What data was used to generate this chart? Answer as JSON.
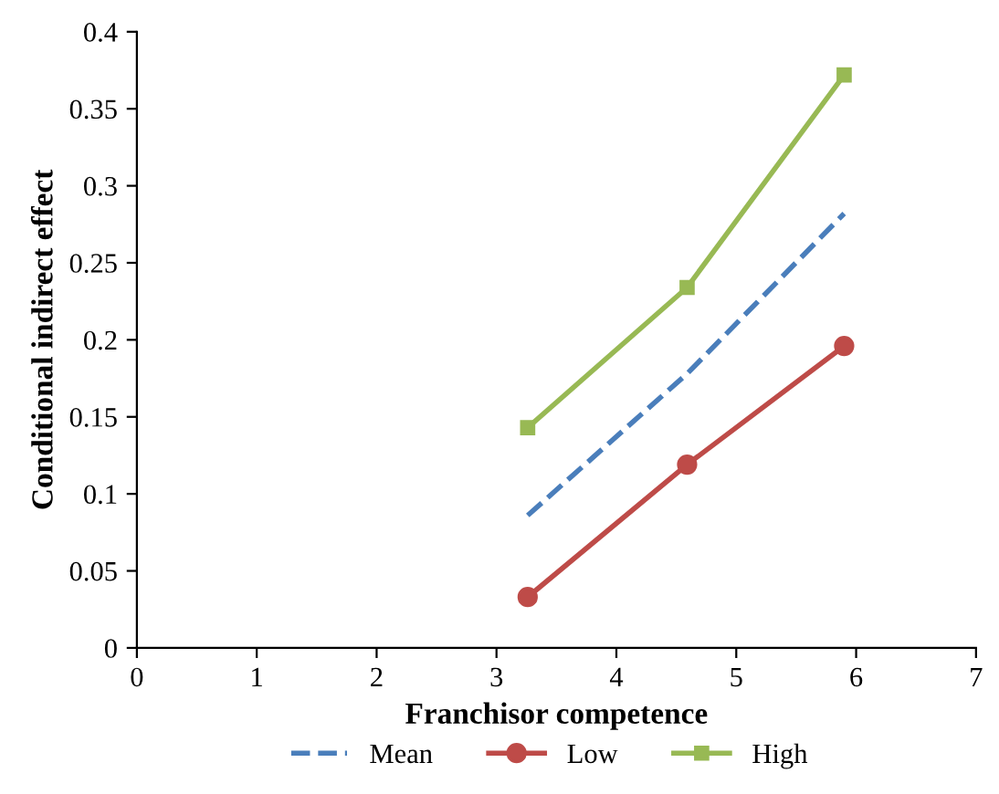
{
  "chart_data": {
    "type": "line",
    "xlabel": "Franchisor competence",
    "ylabel": "Conditional indirect effect",
    "x": [
      3.26,
      4.59,
      5.9
    ],
    "xlim": [
      0,
      7
    ],
    "xticks": [
      0,
      1,
      2,
      3,
      4,
      5,
      6,
      7
    ],
    "ylim": [
      0,
      0.4
    ],
    "yticks": [
      0,
      0.05,
      0.1,
      0.15,
      0.2,
      0.25,
      0.3,
      0.35,
      0.4
    ],
    "grid": false,
    "legend": "bottom",
    "series": [
      {
        "name": "Mean",
        "color": "#4a7ebb",
        "values": [
          0.086,
          0.178,
          0.282
        ],
        "line_style": "dashed",
        "marker": "none"
      },
      {
        "name": "Low",
        "color": "#be4b48",
        "values": [
          0.033,
          0.119,
          0.196
        ],
        "line_style": "solid",
        "marker": "circle"
      },
      {
        "name": "High",
        "color": "#98b954",
        "values": [
          0.143,
          0.234,
          0.372
        ],
        "line_style": "solid",
        "marker": "square"
      }
    ]
  }
}
